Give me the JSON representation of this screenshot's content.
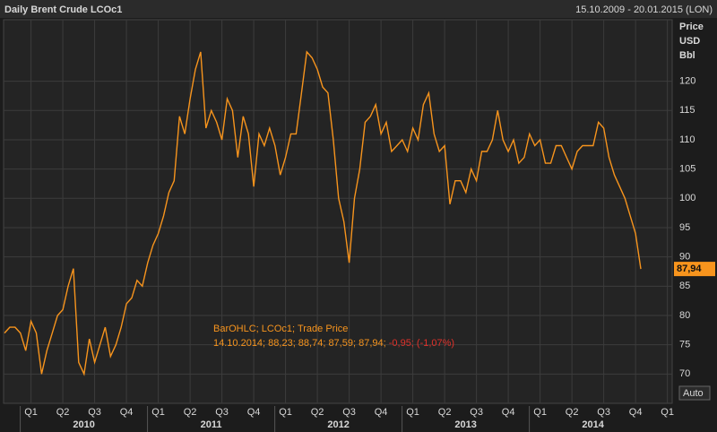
{
  "chart_data": {
    "type": "line",
    "title": "Daily Brent Crude LCOc1",
    "date_range": "15.10.2009 - 20.01.2015 (LON)",
    "y_axis_label": [
      "Price",
      "USD",
      "Bbl"
    ],
    "annotation": {
      "line1": "BarOHLC; LCOc1; Trade Price",
      "line2": "14.10.2014; 88,23; 88,74; 87,59; 87,94;",
      "change": "-0,95; (-1,07%)"
    },
    "last_price": {
      "value": 87.94,
      "label": "87,94"
    },
    "auto_button": "Auto",
    "categories": [
      null,
      null,
      null,
      null,
      null,
      "Q1",
      null,
      null,
      null,
      null,
      null,
      "Q2",
      null,
      null,
      null,
      null,
      null,
      "Q3",
      null,
      null,
      null,
      null,
      null,
      "Q4",
      null,
      null,
      null,
      null,
      null,
      "Q1",
      null,
      null,
      null,
      null,
      null,
      "Q2",
      null,
      null,
      null,
      null,
      null,
      "Q3",
      null,
      null,
      null,
      null,
      null,
      "Q4",
      null,
      null,
      null,
      null,
      null,
      "Q1",
      null,
      null,
      null,
      null,
      null,
      "Q2",
      null,
      null,
      null,
      null,
      null,
      "Q3",
      null,
      null,
      null,
      null,
      null,
      "Q4",
      null,
      null,
      null,
      null,
      null,
      "Q1",
      null,
      null,
      null,
      null,
      null,
      "Q2",
      null,
      null,
      null,
      null,
      null,
      "Q3",
      null,
      null,
      null,
      null,
      null,
      "Q4",
      null,
      null,
      null,
      null,
      null,
      "Q1",
      null,
      null,
      null,
      null,
      null,
      "Q2",
      null,
      null,
      null,
      null,
      null,
      "Q3",
      null,
      null,
      null,
      null,
      null,
      "Q4",
      null,
      null,
      null,
      null,
      null,
      "Q1",
      null
    ],
    "years": [
      "2010",
      "2011",
      "2012",
      "2013",
      "2014"
    ],
    "series": [
      {
        "color": "#f7941d",
        "values": [
          77,
          78,
          78,
          77,
          74,
          79,
          77,
          70,
          74,
          77,
          80,
          81,
          85,
          88,
          72,
          70,
          76,
          72,
          75,
          78,
          73,
          75,
          78,
          82,
          83,
          86,
          85,
          89,
          92,
          94,
          97,
          101,
          103,
          114,
          111,
          117,
          122,
          125,
          112,
          115,
          113,
          110,
          117,
          115,
          107,
          114,
          111,
          102,
          111,
          109,
          112,
          109,
          104,
          107,
          111,
          111,
          118,
          125,
          124,
          122,
          119,
          118,
          110,
          100,
          96,
          89,
          100,
          105,
          113,
          114,
          116,
          111,
          113,
          108,
          109,
          110,
          108,
          112,
          110,
          116,
          118,
          111,
          108,
          109,
          99,
          103,
          103,
          101,
          105,
          103,
          108,
          108,
          110,
          115,
          110,
          108,
          110,
          106,
          107,
          111,
          109,
          110,
          106,
          106,
          109,
          109,
          107,
          105,
          108,
          109,
          109,
          109,
          113,
          112,
          107,
          104,
          102,
          100,
          97,
          94,
          87.94,
          null,
          null,
          null,
          null,
          null,
          null
        ]
      }
    ],
    "ylim": [
      65,
      130.5
    ],
    "yticks": [
      70,
      75,
      80,
      85,
      90,
      95,
      100,
      105,
      110,
      115,
      120
    ],
    "grid": true
  }
}
